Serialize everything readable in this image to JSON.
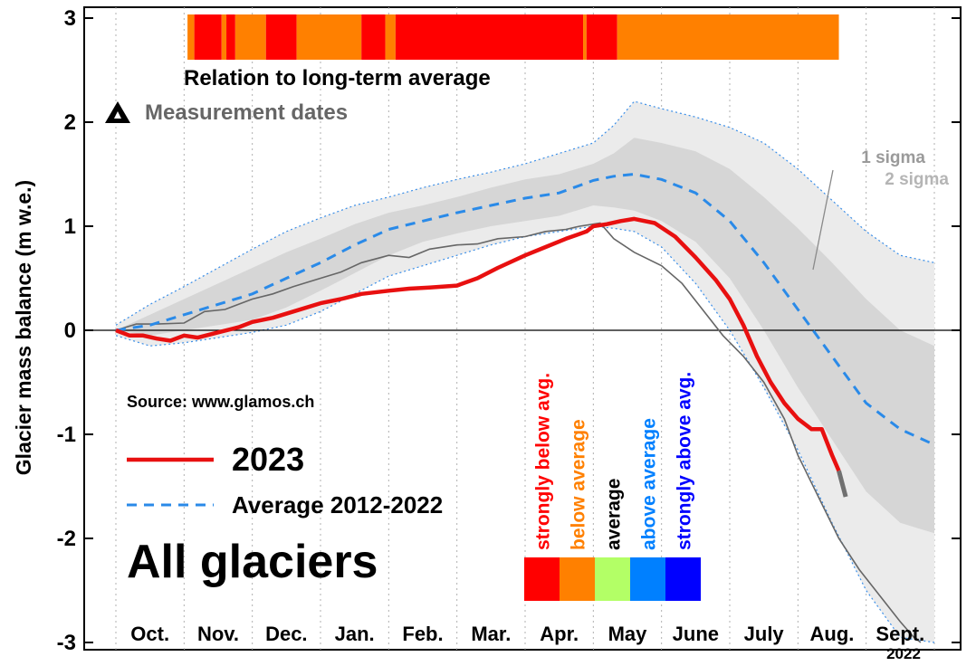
{
  "chart_data": {
    "type": "line",
    "ylabel": "Glacier mass balance (m w.e.)",
    "ylim": [
      -3,
      3
    ],
    "y_ticks": [
      "-3",
      "-2",
      "-1",
      "0",
      "1",
      "2",
      "3"
    ],
    "x_months": [
      "Oct.",
      "Nov.",
      "Dec.",
      "Jan.",
      "Feb.",
      "Mar.",
      "Apr.",
      "May",
      "June",
      "July",
      "Aug.",
      "Sept."
    ],
    "x_unit": "month index (0 = start of Oct., 12 = end of Sept.)",
    "year_note": "2022",
    "source": "Source: www.glamos.ch",
    "legend_2023": "2023",
    "legend_avg": "Average 2012-2022",
    "big_title": "All glaciers",
    "relation_title": "Relation to long-term average",
    "measurement_label": "Measurement dates",
    "sigma1_label": "1 sigma",
    "sigma2_label": "2 sigma",
    "categories": [
      {
        "label": "strongly below avg.",
        "color": "#ff0000"
      },
      {
        "label": "below average",
        "color": "#ff8000"
      },
      {
        "label": "average",
        "color": "#b3ff66",
        "text_color": "#000000"
      },
      {
        "label": "above average",
        "color": "#0080ff"
      },
      {
        "label": "strongly above avg.",
        "color": "#0000ff"
      }
    ],
    "relation_bar": [
      {
        "from": 1.05,
        "to": 1.15,
        "cat": 1
      },
      {
        "from": 1.15,
        "to": 1.55,
        "cat": 0
      },
      {
        "from": 1.55,
        "to": 1.62,
        "cat": 1
      },
      {
        "from": 1.62,
        "to": 1.75,
        "cat": 0
      },
      {
        "from": 1.75,
        "to": 2.2,
        "cat": 1
      },
      {
        "from": 2.2,
        "to": 2.65,
        "cat": 0
      },
      {
        "from": 2.65,
        "to": 3.6,
        "cat": 1
      },
      {
        "from": 3.6,
        "to": 3.95,
        "cat": 0
      },
      {
        "from": 3.95,
        "to": 4.1,
        "cat": 1
      },
      {
        "from": 4.1,
        "to": 6.85,
        "cat": 0
      },
      {
        "from": 6.85,
        "to": 6.9,
        "cat": 1
      },
      {
        "from": 6.9,
        "to": 7.35,
        "cat": 0
      },
      {
        "from": 7.35,
        "to": 10.6,
        "cat": 1
      }
    ],
    "series": [
      {
        "name": "Average 2012-2022",
        "x": [
          0,
          0.5,
          1,
          1.5,
          2,
          2.5,
          3,
          3.5,
          4,
          4.5,
          5,
          5.5,
          6,
          6.5,
          7,
          7.3,
          7.6,
          8,
          8.5,
          9,
          9.5,
          10,
          10.5,
          11,
          11.5,
          12
        ],
        "y": [
          0,
          0.05,
          0.15,
          0.25,
          0.35,
          0.5,
          0.65,
          0.82,
          0.97,
          1.05,
          1.13,
          1.2,
          1.27,
          1.32,
          1.44,
          1.48,
          1.5,
          1.45,
          1.32,
          1.05,
          0.65,
          0.2,
          -0.25,
          -0.7,
          -0.95,
          -1.1
        ]
      },
      {
        "name": "Average +1 sigma",
        "x": [
          0,
          0.5,
          1,
          1.5,
          2,
          2.5,
          3,
          3.5,
          4,
          4.5,
          5,
          5.5,
          6,
          6.5,
          7,
          7.3,
          7.6,
          8,
          8.5,
          9,
          9.5,
          10,
          10.5,
          11,
          11.5,
          12
        ],
        "y": [
          0,
          0.15,
          0.3,
          0.45,
          0.6,
          0.75,
          0.88,
          1.02,
          1.13,
          1.2,
          1.28,
          1.37,
          1.45,
          1.5,
          1.6,
          1.7,
          1.85,
          1.8,
          1.72,
          1.55,
          1.28,
          0.98,
          0.65,
          0.3,
          0.0,
          -0.15
        ]
      },
      {
        "name": "Average -1 sigma",
        "x": [
          0,
          0.5,
          1,
          1.5,
          2,
          2.5,
          3,
          3.5,
          4,
          4.5,
          5,
          5.5,
          6,
          6.5,
          7,
          7.3,
          7.6,
          8,
          8.5,
          9,
          9.5,
          10,
          10.5,
          11,
          11.5,
          12
        ],
        "y": [
          0,
          -0.05,
          0.0,
          0.05,
          0.1,
          0.22,
          0.38,
          0.55,
          0.72,
          0.85,
          0.93,
          1.0,
          1.05,
          1.1,
          1.2,
          1.18,
          1.15,
          1.05,
          0.85,
          0.5,
          0.0,
          -0.55,
          -1.05,
          -1.55,
          -1.85,
          -1.95
        ]
      },
      {
        "name": "Average +2 sigma",
        "x": [
          0,
          0.5,
          1,
          1.5,
          2,
          2.5,
          3,
          3.5,
          4,
          4.5,
          5,
          5.5,
          6,
          6.5,
          7,
          7.3,
          7.6,
          8,
          8.5,
          9,
          9.5,
          10,
          10.5,
          11,
          11.5,
          12
        ],
        "y": [
          0.05,
          0.25,
          0.42,
          0.6,
          0.78,
          0.95,
          1.08,
          1.2,
          1.28,
          1.37,
          1.45,
          1.52,
          1.6,
          1.7,
          1.8,
          1.97,
          2.2,
          2.13,
          2.05,
          1.95,
          1.8,
          1.55,
          1.25,
          0.95,
          0.72,
          0.65
        ]
      },
      {
        "name": "Average -2 sigma",
        "x": [
          0,
          0.5,
          1,
          1.5,
          2,
          2.5,
          3,
          3.5,
          4,
          4.5,
          5,
          5.5,
          6,
          6.5,
          7,
          7.3,
          7.6,
          8,
          8.5,
          9,
          9.5,
          10,
          10.5,
          11,
          11.5,
          12
        ],
        "y": [
          -0.05,
          -0.15,
          -0.12,
          -0.07,
          -0.02,
          0.05,
          0.18,
          0.35,
          0.52,
          0.62,
          0.72,
          0.82,
          0.9,
          0.95,
          1.0,
          0.98,
          0.95,
          0.8,
          0.45,
          0.0,
          -0.55,
          -1.15,
          -1.85,
          -2.5,
          -2.95,
          -3.0
        ]
      },
      {
        "name": "2022",
        "x": [
          0,
          0.3,
          0.6,
          1,
          1.3,
          1.6,
          2,
          2.3,
          2.6,
          3,
          3.3,
          3.6,
          4,
          4.3,
          4.6,
          5,
          5.3,
          5.6,
          6,
          6.3,
          6.6,
          6.8,
          7.0,
          7.1,
          7.3,
          7.6,
          8,
          8.3,
          8.6,
          8.9,
          9.2,
          9.5,
          9.8,
          10,
          10.3,
          10.6,
          10.9,
          11.2,
          11.5,
          11.7,
          11.8
        ],
        "y": [
          0,
          0.06,
          0.06,
          0.07,
          0.18,
          0.2,
          0.3,
          0.35,
          0.42,
          0.5,
          0.56,
          0.65,
          0.72,
          0.7,
          0.78,
          0.82,
          0.83,
          0.88,
          0.9,
          0.95,
          0.97,
          1.0,
          1.02,
          1.03,
          0.88,
          0.75,
          0.62,
          0.45,
          0.2,
          -0.05,
          -0.25,
          -0.5,
          -0.85,
          -1.2,
          -1.6,
          -2.0,
          -2.3,
          -2.55,
          -2.8,
          -2.95,
          -3.0
        ]
      },
      {
        "name": "2023",
        "x": [
          0,
          0.2,
          0.4,
          0.6,
          0.8,
          1.0,
          1.2,
          1.5,
          1.8,
          2.0,
          2.3,
          2.6,
          3.0,
          3.3,
          3.6,
          4.0,
          4.3,
          4.6,
          5.0,
          5.3,
          5.6,
          6.0,
          6.3,
          6.6,
          6.9,
          7.0,
          7.2,
          7.4,
          7.6,
          7.9,
          8.2,
          8.5,
          8.8,
          9.0,
          9.2,
          9.4,
          9.6,
          9.8,
          10.0,
          10.2,
          10.35,
          10.5,
          10.6
        ],
        "y": [
          0,
          -0.05,
          -0.05,
          -0.08,
          -0.1,
          -0.05,
          -0.07,
          -0.02,
          0.03,
          0.08,
          0.12,
          0.18,
          0.26,
          0.3,
          0.35,
          0.38,
          0.4,
          0.41,
          0.43,
          0.5,
          0.6,
          0.72,
          0.8,
          0.88,
          0.95,
          1.0,
          1.02,
          1.05,
          1.07,
          1.03,
          0.9,
          0.7,
          0.48,
          0.3,
          0.05,
          -0.25,
          -0.5,
          -0.7,
          -0.85,
          -0.95,
          -0.95,
          -1.2,
          -1.35
        ]
      },
      {
        "name": "2023 extrapolation",
        "x": [
          10.6,
          10.7
        ],
        "y": [
          -1.35,
          -1.6
        ]
      }
    ]
  }
}
